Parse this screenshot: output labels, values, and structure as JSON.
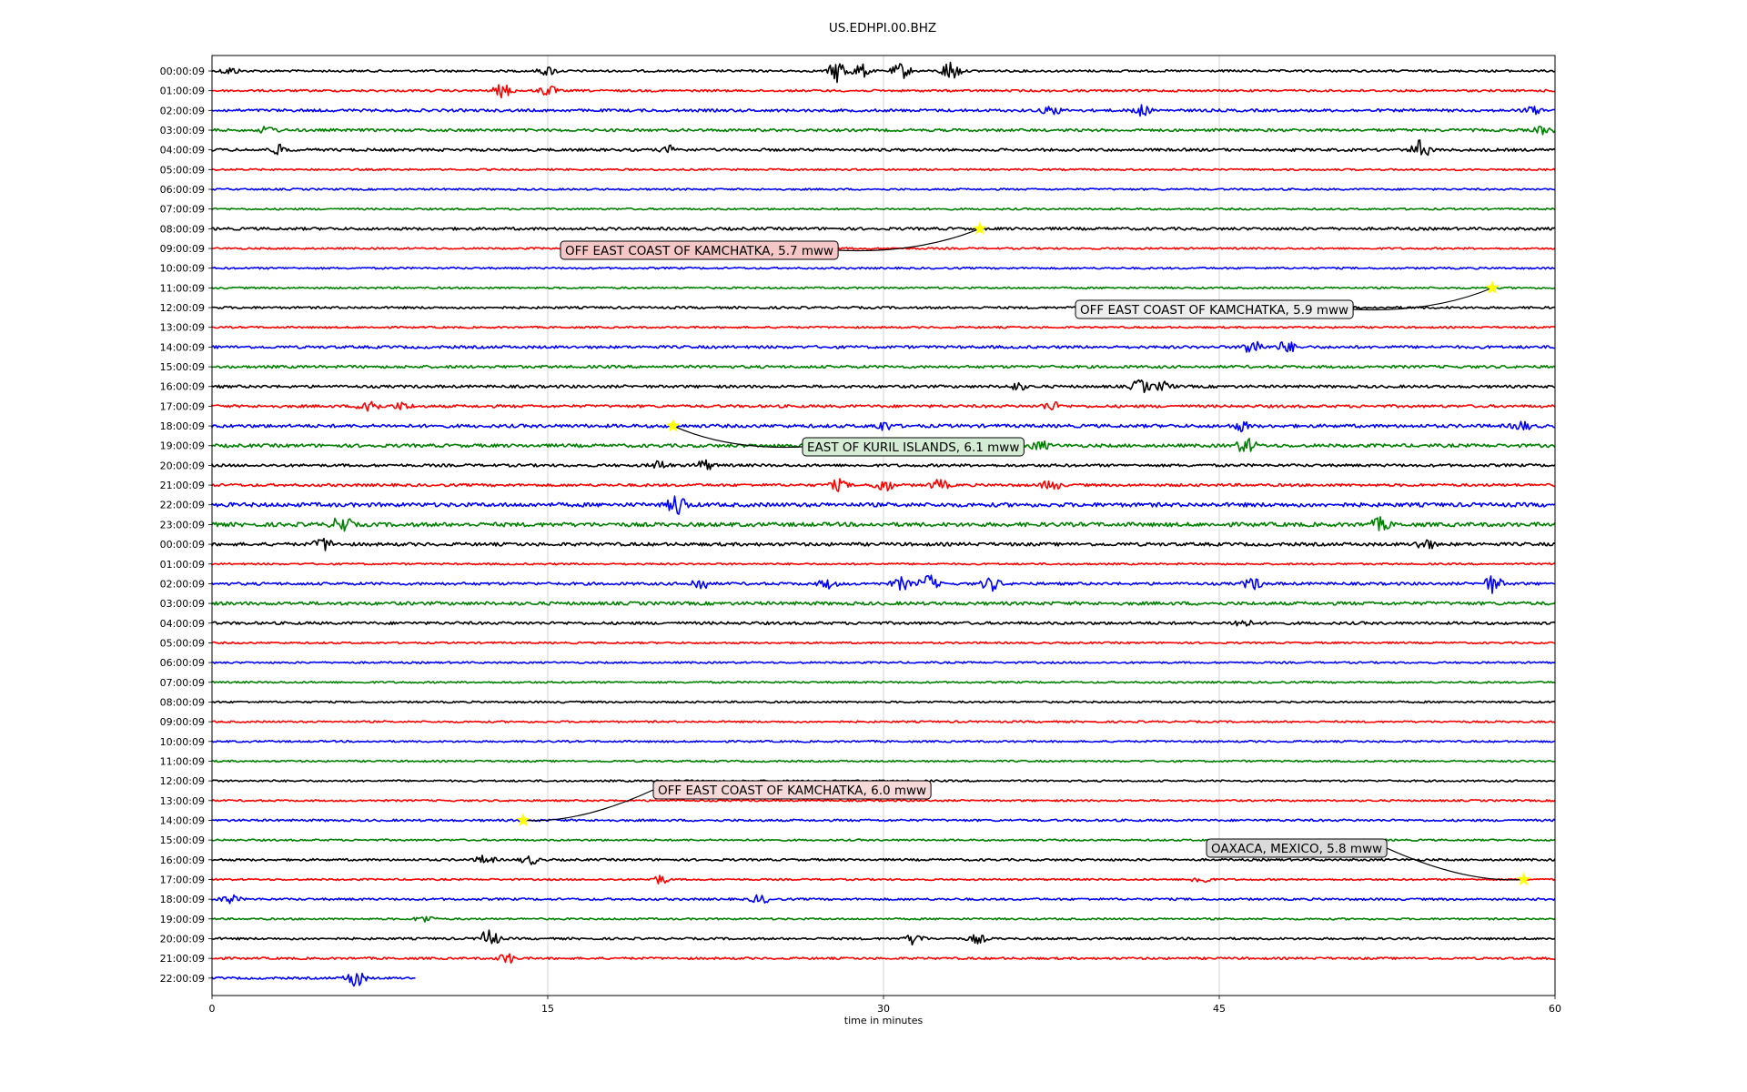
{
  "chart_data": {
    "type": "line",
    "title": "US.EDHPI.00.BHZ",
    "xlabel": "time in minutes",
    "xlim": [
      0,
      60
    ],
    "x_ticks": [
      "0",
      "15",
      "30",
      "45",
      "60"
    ],
    "x_tick_values": [
      0,
      15,
      30,
      45,
      60
    ],
    "grid": "vertical at 15-minute ticks",
    "row_colors": [
      "#000000",
      "#ff0000",
      "#0000ff",
      "#008000"
    ],
    "row_labels": [
      "00:00:09",
      "01:00:09",
      "02:00:09",
      "03:00:09",
      "04:00:09",
      "05:00:09",
      "06:00:09",
      "07:00:09",
      "08:00:09",
      "09:00:09",
      "10:00:09",
      "11:00:09",
      "12:00:09",
      "13:00:09",
      "14:00:09",
      "15:00:09",
      "16:00:09",
      "17:00:09",
      "18:00:09",
      "19:00:09",
      "20:00:09",
      "21:00:09",
      "22:00:09",
      "23:00:09",
      "00:00:09",
      "01:00:09",
      "02:00:09",
      "03:00:09",
      "04:00:09",
      "05:00:09",
      "06:00:09",
      "07:00:09",
      "08:00:09",
      "09:00:09",
      "10:00:09",
      "11:00:09",
      "12:00:09",
      "13:00:09",
      "14:00:09",
      "15:00:09",
      "16:00:09",
      "17:00:09",
      "18:00:09",
      "19:00:09",
      "20:00:09",
      "21:00:09",
      "22:00:09"
    ],
    "last_row_end_minute": 9.1,
    "noise_amplitude": [
      1.2,
      1.2,
      1.5,
      1.5,
      1.5,
      1.0,
      1.0,
      1.0,
      1.5,
      1.0,
      1.0,
      1.0,
      1.2,
      1.0,
      1.5,
      1.5,
      1.5,
      1.5,
      1.8,
      1.8,
      1.5,
      1.5,
      2.2,
      2.2,
      1.8,
      1.0,
      1.5,
      1.8,
      1.5,
      1.0,
      1.0,
      1.0,
      1.0,
      1.0,
      1.0,
      1.0,
      1.0,
      1.0,
      1.2,
      1.0,
      1.2,
      1.0,
      1.2,
      1.0,
      1.2,
      1.2,
      1.2
    ],
    "bursts": [
      {
        "row": 0,
        "minute": 28.0,
        "amp": 14
      },
      {
        "row": 0,
        "minute": 29.0,
        "amp": 8
      },
      {
        "row": 0,
        "minute": 30.8,
        "amp": 9
      },
      {
        "row": 0,
        "minute": 33.0,
        "amp": 12
      },
      {
        "row": 0,
        "minute": 15.0,
        "amp": 5
      },
      {
        "row": 0,
        "minute": 0.8,
        "amp": 4
      },
      {
        "row": 1,
        "minute": 13.0,
        "amp": 8
      },
      {
        "row": 1,
        "minute": 15.0,
        "amp": 6
      },
      {
        "row": 2,
        "minute": 37.5,
        "amp": 5
      },
      {
        "row": 2,
        "minute": 41.5,
        "amp": 6
      },
      {
        "row": 2,
        "minute": 59.0,
        "amp": 4
      },
      {
        "row": 3,
        "minute": 2.5,
        "amp": 4
      },
      {
        "row": 3,
        "minute": 59.5,
        "amp": 4
      },
      {
        "row": 4,
        "minute": 3.0,
        "amp": 5
      },
      {
        "row": 4,
        "minute": 54.0,
        "amp": 11
      },
      {
        "row": 4,
        "minute": 20.5,
        "amp": 4
      },
      {
        "row": 14,
        "minute": 46.5,
        "amp": 10
      },
      {
        "row": 14,
        "minute": 48.0,
        "amp": 7
      },
      {
        "row": 16,
        "minute": 36.0,
        "amp": 4
      },
      {
        "row": 16,
        "minute": 41.5,
        "amp": 8
      },
      {
        "row": 16,
        "minute": 42.5,
        "amp": 5
      },
      {
        "row": 17,
        "minute": 7.0,
        "amp": 11
      },
      {
        "row": 17,
        "minute": 8.5,
        "amp": 4
      },
      {
        "row": 17,
        "minute": 37.5,
        "amp": 5
      },
      {
        "row": 18,
        "minute": 30.0,
        "amp": 5
      },
      {
        "row": 18,
        "minute": 46.0,
        "amp": 5
      },
      {
        "row": 18,
        "minute": 58.5,
        "amp": 5
      },
      {
        "row": 19,
        "minute": 46.2,
        "amp": 9
      },
      {
        "row": 19,
        "minute": 37.0,
        "amp": 5
      },
      {
        "row": 20,
        "minute": 20.0,
        "amp": 5
      },
      {
        "row": 20,
        "minute": 22.0,
        "amp": 6
      },
      {
        "row": 21,
        "minute": 28.0,
        "amp": 6
      },
      {
        "row": 21,
        "minute": 30.0,
        "amp": 8
      },
      {
        "row": 21,
        "minute": 32.5,
        "amp": 6
      },
      {
        "row": 21,
        "minute": 37.5,
        "amp": 6
      },
      {
        "row": 22,
        "minute": 20.8,
        "amp": 12
      },
      {
        "row": 23,
        "minute": 5.8,
        "amp": 10
      },
      {
        "row": 23,
        "minute": 52.2,
        "amp": 7
      },
      {
        "row": 24,
        "minute": 5.0,
        "amp": 7
      },
      {
        "row": 24,
        "minute": 54.2,
        "amp": 6
      },
      {
        "row": 26,
        "minute": 21.8,
        "amp": 7
      },
      {
        "row": 26,
        "minute": 32.0,
        "amp": 10
      },
      {
        "row": 26,
        "minute": 34.8,
        "amp": 8
      },
      {
        "row": 26,
        "minute": 46.5,
        "amp": 7
      },
      {
        "row": 26,
        "minute": 57.2,
        "amp": 10
      },
      {
        "row": 26,
        "minute": 27.5,
        "amp": 5
      },
      {
        "row": 26,
        "minute": 30.8,
        "amp": 7
      },
      {
        "row": 28,
        "minute": 46.0,
        "amp": 5
      },
      {
        "row": 40,
        "minute": 12.2,
        "amp": 5
      },
      {
        "row": 40,
        "minute": 14.2,
        "amp": 5
      },
      {
        "row": 41,
        "minute": 20.0,
        "amp": 5
      },
      {
        "row": 41,
        "minute": 44.2,
        "amp": 5
      },
      {
        "row": 42,
        "minute": 0.8,
        "amp": 5
      },
      {
        "row": 42,
        "minute": 24.5,
        "amp": 5
      },
      {
        "row": 43,
        "minute": 9.5,
        "amp": 4
      },
      {
        "row": 44,
        "minute": 12.4,
        "amp": 11
      },
      {
        "row": 44,
        "minute": 31.4,
        "amp": 7
      },
      {
        "row": 44,
        "minute": 34.2,
        "amp": 5
      },
      {
        "row": 45,
        "minute": 13.2,
        "amp": 6
      },
      {
        "row": 46,
        "minute": 6.4,
        "amp": 11
      }
    ],
    "annotations": [
      {
        "text": "OFF EAST COAST OF KAMCHATKA, 5.7 mww",
        "row": 8,
        "minute": 34.3,
        "bg": "#f5c6c6"
      },
      {
        "text": "OFF EAST COAST OF KAMCHATKA, 5.9 mww",
        "row": 11,
        "minute": 57.2,
        "bg": "#ededed"
      },
      {
        "text": "EAST OF KURIL ISLANDS, 6.1 mww",
        "row": 18,
        "minute": 20.6,
        "bg": "#d4ecd4"
      },
      {
        "text": "OFF EAST COAST OF KAMCHATKA, 6.0 mww",
        "row": 38,
        "minute": 13.9,
        "bg": "#f5d8d8"
      },
      {
        "text": "OAXACA, MEXICO, 5.8 mww",
        "row": 41,
        "minute": 58.6,
        "bg": "#dadada"
      }
    ],
    "star_color": "#ffff00"
  }
}
